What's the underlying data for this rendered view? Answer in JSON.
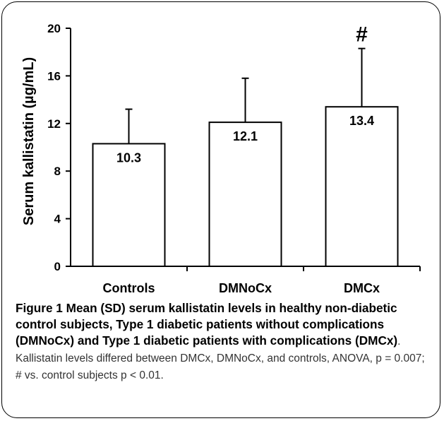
{
  "chart_data": {
    "type": "bar",
    "categories": [
      "Controls",
      "DMNoCx",
      "DMCx"
    ],
    "values": [
      10.3,
      12.1,
      13.4
    ],
    "value_labels": [
      "10.3",
      "12.1",
      "13.4"
    ],
    "error_upper": [
      13.2,
      15.8,
      18.3
    ],
    "ylabel": "Serum kallistatin (µg/mL)",
    "xlabel": "",
    "ylim": [
      0,
      20
    ],
    "yticks": [
      0,
      4,
      8,
      12,
      16,
      20
    ],
    "annotations": [
      {
        "category": "DMCx",
        "text": "#"
      }
    ],
    "grid": false,
    "bar_fill": "#ffffff",
    "bar_stroke": "#000000"
  },
  "caption": {
    "label": "Figure 1",
    "title": "Mean (SD) serum kallistatin levels in healthy non-diabetic control subjects, Type 1 diabetic patients without complications (DMNoCx) and Type 1 diabetic patients with complications (DMCx)",
    "body": ". Kallistatin levels differed between DMCx, DMNoCx, and controls, ANOVA, p = 0.007; # vs. control subjects p < 0.01."
  }
}
